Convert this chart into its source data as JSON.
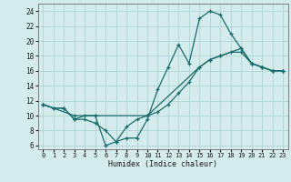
{
  "title": "",
  "xlabel": "Humidex (Indice chaleur)",
  "bg_color": "#d4ecec",
  "grid_color": "#aed4d4",
  "line_color": "#1a6b6b",
  "xlim": [
    -0.5,
    23.5
  ],
  "ylim": [
    5.5,
    25.0
  ],
  "xticks": [
    0,
    1,
    2,
    3,
    4,
    5,
    6,
    7,
    8,
    9,
    10,
    11,
    12,
    13,
    14,
    15,
    16,
    17,
    18,
    19,
    20,
    21,
    22,
    23
  ],
  "yticks": [
    6,
    8,
    10,
    12,
    14,
    16,
    18,
    20,
    22,
    24
  ],
  "line1_x": [
    0,
    1,
    2,
    3,
    4,
    5,
    6,
    7,
    8,
    9,
    10,
    11,
    12,
    13,
    14,
    15,
    16,
    17,
    18,
    19,
    20,
    21,
    22,
    23
  ],
  "line1_y": [
    11.5,
    11.0,
    11.0,
    9.5,
    10.0,
    10.0,
    6.0,
    6.5,
    7.0,
    7.0,
    9.5,
    13.5,
    16.5,
    19.5,
    17.0,
    23.0,
    24.0,
    23.5,
    21.0,
    19.0,
    17.0,
    16.5,
    16.0,
    16.0
  ],
  "line2_x": [
    0,
    1,
    2,
    3,
    4,
    5,
    6,
    7,
    8,
    9,
    10,
    11,
    12,
    13,
    14,
    15,
    16,
    17,
    18,
    19,
    20,
    21,
    22,
    23
  ],
  "line2_y": [
    11.5,
    11.0,
    11.0,
    9.5,
    9.5,
    9.0,
    8.0,
    6.5,
    8.5,
    9.5,
    10.0,
    10.5,
    11.5,
    13.0,
    14.5,
    16.5,
    17.5,
    18.0,
    18.5,
    18.5,
    17.0,
    16.5,
    16.0,
    16.0
  ],
  "line3_x": [
    0,
    3,
    5,
    10,
    15,
    16,
    17,
    19,
    20,
    21,
    22,
    23
  ],
  "line3_y": [
    11.5,
    10.0,
    10.0,
    10.0,
    16.5,
    17.5,
    18.0,
    19.0,
    17.0,
    16.5,
    16.0,
    16.0
  ]
}
